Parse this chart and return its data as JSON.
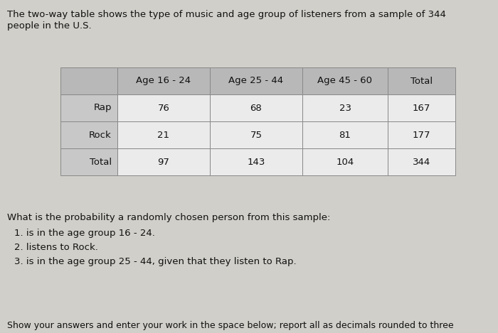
{
  "intro_text_line1": "The two-way table shows the type of music and age group of listeners from a sample of 344",
  "intro_text_line2": "people in the U.S.",
  "col_headers": [
    "",
    "Age 16 - 24",
    "Age 25 - 44",
    "Age 45 - 60",
    "Total"
  ],
  "rows": [
    [
      "Rap",
      "76",
      "68",
      "23",
      "167"
    ],
    [
      "Rock",
      "21",
      "75",
      "81",
      "177"
    ],
    [
      "Total",
      "97",
      "143",
      "104",
      "344"
    ]
  ],
  "question_text": "What is the probability a randomly chosen person from this sample:",
  "questions": [
    "1. is in the age group 16 - 24.",
    "2. listens to Rock.",
    "3. is in the age group 25 - 44, given that they listen to Rap."
  ],
  "footer_text": "Show your answers and enter your work in the space below; report all as decimals rounded to three",
  "header_bg": "#b8b8b8",
  "row_label_bg": "#c8c8c8",
  "data_bg": "#ebebeb",
  "total_row_label_bg": "#c8c8c8",
  "total_row_data_bg": "#ebebeb",
  "page_bg": "#d0cfc9",
  "border_color": "#888888",
  "text_color": "#111111",
  "font_size_intro": 9.5,
  "font_size_table": 9.5,
  "font_size_question": 9.5,
  "font_size_footer": 9.0
}
